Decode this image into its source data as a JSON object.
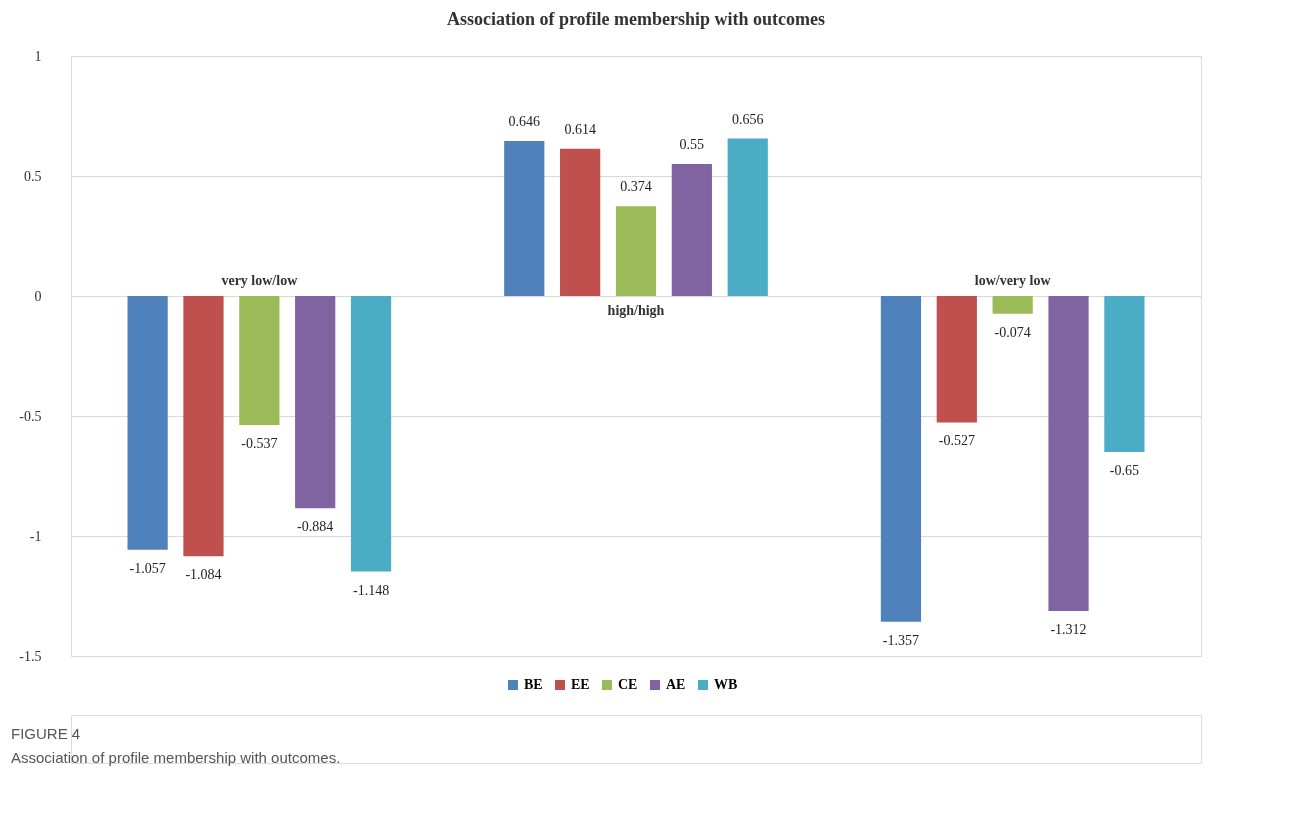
{
  "chart_data": {
    "type": "bar",
    "title": "Association of profile membership with outcomes",
    "categories": [
      "very low/low",
      "high/high",
      "low/very low"
    ],
    "series": [
      {
        "name": "BE",
        "color": "#4f81bd",
        "values": [
          -1.057,
          0.646,
          -1.357
        ]
      },
      {
        "name": "EE",
        "color": "#c0504d",
        "values": [
          -1.084,
          0.614,
          -0.527
        ]
      },
      {
        "name": "CE",
        "color": "#9bbb59",
        "values": [
          -0.537,
          0.374,
          -0.074
        ]
      },
      {
        "name": "AE",
        "color": "#8064a2",
        "values": [
          -0.884,
          0.55,
          -1.312
        ]
      },
      {
        "name": "WB",
        "color": "#4bacc6",
        "values": [
          -1.148,
          0.656,
          -0.65
        ]
      }
    ],
    "ylim": [
      -1.5,
      1
    ],
    "yticks": [
      -1.5,
      -1,
      -0.5,
      0,
      0.5,
      1
    ],
    "grid": "y",
    "legend": "bottom",
    "data_labels": true,
    "annotations": [
      "FIGURE 4",
      "Association of profile membership with outcomes."
    ]
  }
}
